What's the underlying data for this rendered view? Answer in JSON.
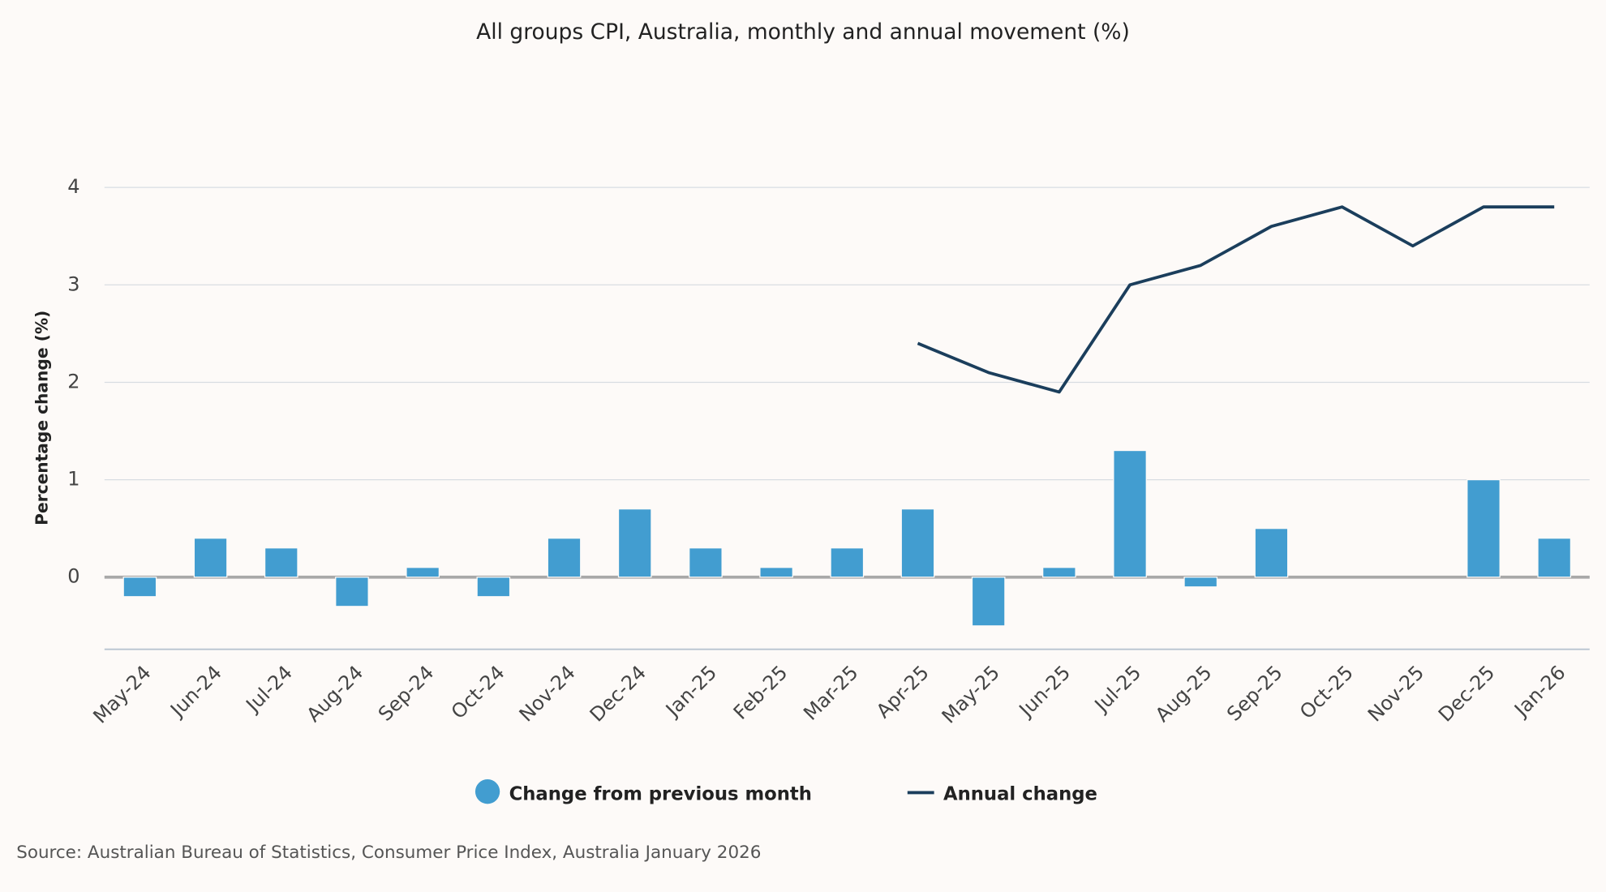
{
  "chart_data": {
    "type": "bar-line",
    "title": "All groups CPI, Australia, monthly and annual movement (%)",
    "y_label": "Percentage change (%)",
    "source": "Source: Australian Bureau of Statistics, Consumer Price Index, Australia January 2026",
    "categories": [
      "May-24",
      "Jun-24",
      "Jul-24",
      "Aug-24",
      "Sep-24",
      "Oct-24",
      "Nov-24",
      "Dec-24",
      "Jan-25",
      "Feb-25",
      "Mar-25",
      "Apr-25",
      "May-25",
      "Jun-25",
      "Jul-25",
      "Aug-25",
      "Sep-25",
      "Oct-25",
      "Nov-25",
      "Dec-25",
      "Jan-26"
    ],
    "series": [
      {
        "name": "Change from previous month",
        "type": "bar",
        "color": "#429dd0",
        "values": [
          -0.2,
          0.4,
          0.3,
          -0.3,
          0.1,
          -0.2,
          0.4,
          0.7,
          0.3,
          0.1,
          0.3,
          0.7,
          -0.5,
          0.1,
          1.3,
          -0.1,
          0.5,
          0,
          0,
          1.0,
          0.4
        ]
      },
      {
        "name": "Annual change",
        "type": "line",
        "color": "#1b3e5c",
        "values": [
          null,
          null,
          null,
          null,
          null,
          null,
          null,
          null,
          null,
          null,
          null,
          2.4,
          2.1,
          1.9,
          3.0,
          3.2,
          3.6,
          3.8,
          3.4,
          3.8,
          3.8
        ]
      }
    ],
    "ylim": [
      -0.74,
      4
    ],
    "yticks": [
      0,
      1,
      2,
      3,
      4
    ],
    "grid": true
  }
}
